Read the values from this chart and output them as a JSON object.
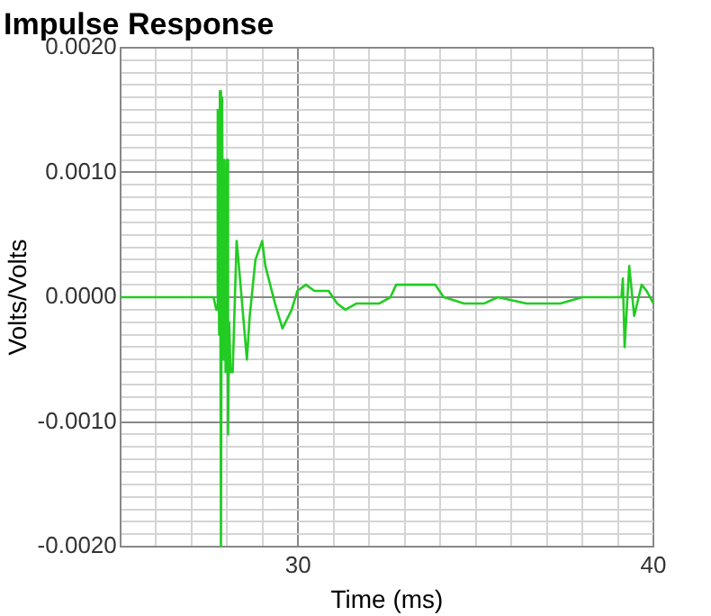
{
  "chart_data": {
    "type": "line",
    "title": "Impulse Response",
    "xlabel": "Time (ms)",
    "ylabel": "Volts/Volts",
    "x": [
      25,
      27.62,
      27.7,
      27.74,
      27.78,
      27.8,
      27.83,
      27.86,
      27.9,
      27.93,
      27.96,
      28.0,
      28.03,
      28.06,
      28.1,
      28.16,
      28.27,
      28.32,
      28.56,
      28.64,
      28.8,
      28.99,
      29.08,
      29.35,
      29.56,
      29.82,
      29.98,
      30.22,
      30.46,
      30.86,
      31.1,
      31.33,
      31.65,
      32.29,
      32.6,
      32.76,
      33.24,
      33.86,
      34.1,
      34.67,
      35.24,
      35.62,
      36.43,
      37.38,
      38.0,
      38.81,
      39.1,
      39.14,
      39.19,
      39.32,
      39.46,
      39.67,
      39.81,
      40
    ],
    "series": [
      {
        "color": "#22cc22",
        "values": [
          0,
          0,
          -0.0001,
          0.0015,
          -0.0003,
          0.00165,
          -0.002,
          0.0016,
          -0.0005,
          0.0011,
          -0.0006,
          0.0011,
          -0.0011,
          -0.0002,
          -0.0006,
          -0.0006,
          0.00045,
          0.0003,
          -0.0005,
          -0.00015,
          0.0003,
          0.00045,
          0.00025,
          -5e-05,
          -0.00025,
          -0.0001,
          5e-05,
          0.0001,
          5e-05,
          5e-05,
          -5e-05,
          -0.0001,
          -5e-05,
          -5e-05,
          0,
          0.0001,
          0.0001,
          0.0001,
          0,
          -5e-05,
          -5e-05,
          0,
          -5e-05,
          -5e-05,
          0,
          0,
          0,
          0.00015,
          -0.0004,
          0.00025,
          -0.00015,
          0.0001,
          5e-05,
          -5e-05
        ]
      }
    ],
    "xlim": [
      25,
      40
    ],
    "xticks": [
      {
        "value": 25,
        "label": null
      },
      {
        "value": 26,
        "label": null
      },
      {
        "value": 27,
        "label": null
      },
      {
        "value": 28,
        "label": null
      },
      {
        "value": 29,
        "label": null
      },
      30,
      {
        "value": 31,
        "label": null
      },
      {
        "value": 32,
        "label": null
      },
      {
        "value": 33,
        "label": null
      },
      {
        "value": 34,
        "label": null
      },
      {
        "value": 35,
        "label": null
      },
      {
        "value": 36,
        "label": null
      },
      {
        "value": 37,
        "label": null
      },
      {
        "value": 38,
        "label": null
      },
      {
        "value": 39,
        "label": null
      },
      40
    ],
    "ylim": [
      -0.002,
      0.002
    ],
    "yticks": [
      {
        "value": -0.002,
        "label": "-0.0020"
      },
      {
        "value": -0.0019,
        "label": null
      },
      {
        "value": -0.0018,
        "label": null
      },
      {
        "value": -0.0017,
        "label": null
      },
      {
        "value": -0.0016,
        "label": null
      },
      {
        "value": -0.0015,
        "label": null
      },
      {
        "value": -0.0014,
        "label": null
      },
      {
        "value": -0.0013,
        "label": null
      },
      {
        "value": -0.0012,
        "label": null
      },
      {
        "value": -0.0011,
        "label": null
      },
      {
        "value": -0.001,
        "label": "-0.0010"
      },
      {
        "value": -0.0009,
        "label": null
      },
      {
        "value": -0.0008,
        "label": null
      },
      {
        "value": -0.0007,
        "label": null
      },
      {
        "value": -0.0006,
        "label": null
      },
      {
        "value": -0.0005,
        "label": null
      },
      {
        "value": -0.0004,
        "label": null
      },
      {
        "value": -0.0003,
        "label": null
      },
      {
        "value": -0.0002,
        "label": null
      },
      {
        "value": -0.0001,
        "label": null
      },
      {
        "value": 0,
        "label": "0.0000"
      },
      {
        "value": 0.0001,
        "label": null
      },
      {
        "value": 0.0002,
        "label": null
      },
      {
        "value": 0.0003,
        "label": null
      },
      {
        "value": 0.0004,
        "label": null
      },
      {
        "value": 0.0005,
        "label": null
      },
      {
        "value": 0.0006,
        "label": null
      },
      {
        "value": 0.0007,
        "label": null
      },
      {
        "value": 0.0008,
        "label": null
      },
      {
        "value": 0.0009,
        "label": null
      },
      {
        "value": 0.001,
        "label": "0.0010"
      },
      {
        "value": 0.0011,
        "label": null
      },
      {
        "value": 0.0012,
        "label": null
      },
      {
        "value": 0.0013,
        "label": null
      },
      {
        "value": 0.0014,
        "label": null
      },
      {
        "value": 0.0015,
        "label": null
      },
      {
        "value": 0.0016,
        "label": null
      },
      {
        "value": 0.0017,
        "label": null
      },
      {
        "value": 0.0018,
        "label": null
      },
      {
        "value": 0.0019,
        "label": null
      },
      {
        "value": 0.002,
        "label": "0.0020"
      }
    ],
    "grid": true,
    "legend": false,
    "marker": "none"
  }
}
